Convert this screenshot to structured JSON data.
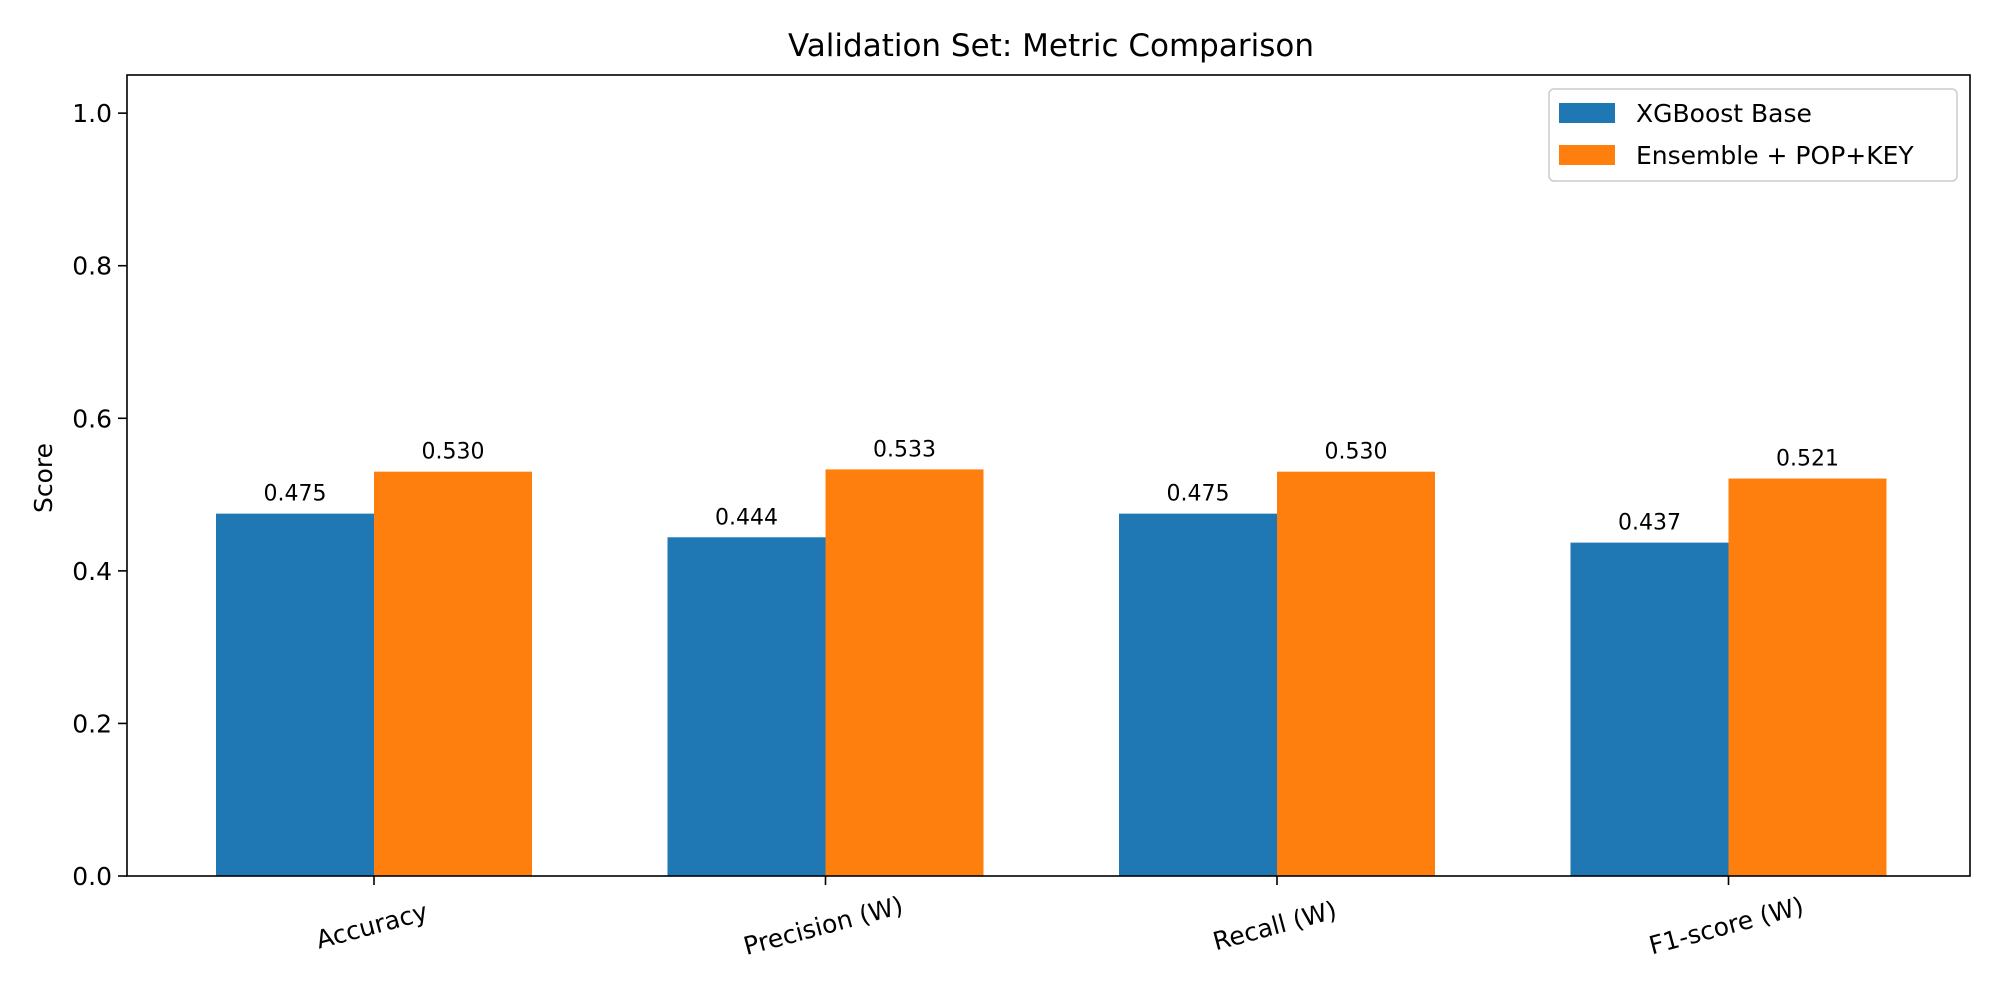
{
  "chart_data": {
    "type": "bar",
    "title": "Validation Set: Metric Comparison",
    "xlabel": "",
    "ylabel": "Score",
    "ylim": [
      0,
      1.05
    ],
    "yticks": [
      0.0,
      0.2,
      0.4,
      0.6,
      0.8,
      1.0
    ],
    "ytick_labels": [
      "0.0",
      "0.2",
      "0.4",
      "0.6",
      "0.8",
      "1.0"
    ],
    "categories": [
      "Accuracy",
      "Precision (W)",
      "Recall (W)",
      "F1-score (W)"
    ],
    "series": [
      {
        "name": "XGBoost Base",
        "color": "#1f77b4",
        "values": [
          0.475,
          0.444,
          0.475,
          0.437
        ],
        "labels": [
          "0.475",
          "0.444",
          "0.475",
          "0.437"
        ]
      },
      {
        "name": "Ensemble + POP+KEY",
        "color": "#ff7f0e",
        "values": [
          0.53,
          0.533,
          0.53,
          0.521
        ],
        "labels": [
          "0.530",
          "0.533",
          "0.530",
          "0.521"
        ]
      }
    ],
    "legend": "top-right",
    "grid": false,
    "xtick_rotation_deg": -15
  }
}
